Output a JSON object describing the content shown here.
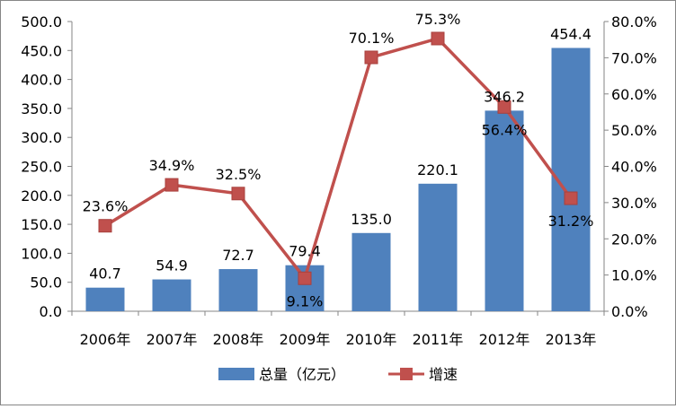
{
  "chart_data": {
    "type": "bar",
    "title": "",
    "xlabel": "",
    "ylabel": "",
    "categories": [
      "2006年",
      "2007年",
      "2008年",
      "2009年",
      "2010年",
      "2011年",
      "2012年",
      "2013年"
    ],
    "series": [
      {
        "name": "总量（亿元）",
        "type": "bar",
        "axis": "left",
        "color": "#4F81BD",
        "values": [
          40.7,
          54.9,
          72.7,
          79.4,
          135.0,
          220.1,
          346.2,
          454.4
        ],
        "labels": [
          "40.7",
          "54.9",
          "72.7",
          "79.4",
          "135.0",
          "220.1",
          "346.2",
          "454.4"
        ]
      },
      {
        "name": "增速",
        "type": "line",
        "axis": "right",
        "color": "#C0504D",
        "values": [
          23.6,
          34.9,
          32.5,
          9.1,
          70.1,
          75.3,
          56.4,
          31.2
        ],
        "labels": [
          "23.6%",
          "34.9%",
          "32.5%",
          "9.1%",
          "70.1%",
          "75.3%",
          "56.4%",
          "31.2%"
        ]
      }
    ],
    "y_left": {
      "min": 0,
      "max": 500,
      "ticks": [
        "0.0",
        "50.0",
        "100.0",
        "150.0",
        "200.0",
        "250.0",
        "300.0",
        "350.0",
        "400.0",
        "450.0",
        "500.0"
      ]
    },
    "y_right": {
      "min": 0,
      "max": 80,
      "ticks": [
        "0.0%",
        "10.0%",
        "20.0%",
        "30.0%",
        "40.0%",
        "50.0%",
        "60.0%",
        "70.0%",
        "80.0%"
      ]
    },
    "grid": false,
    "legend_position": "bottom"
  }
}
